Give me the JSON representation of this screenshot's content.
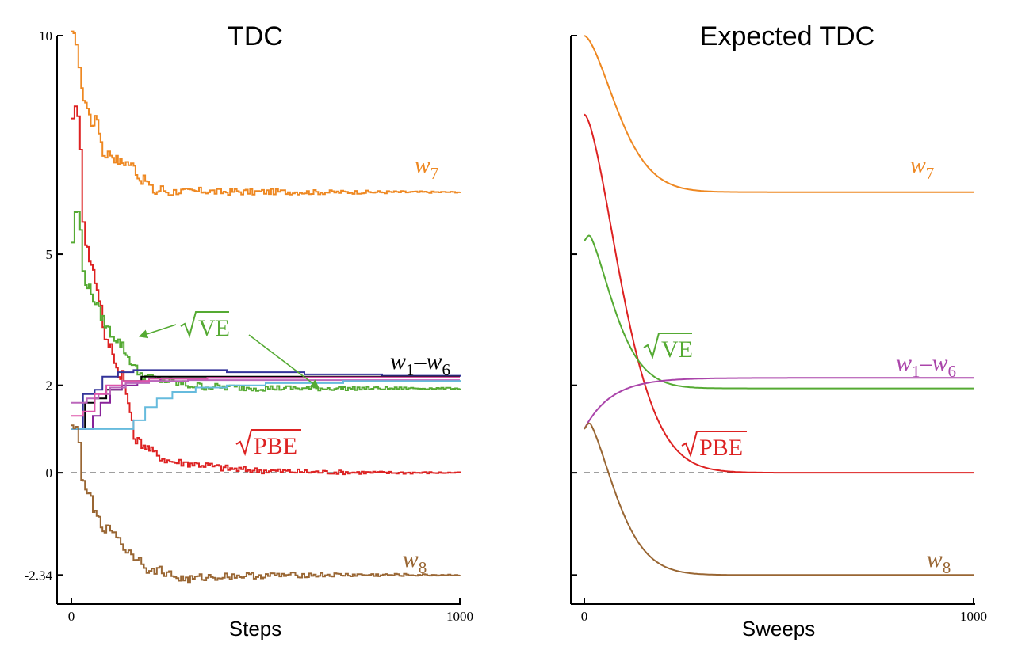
{
  "chart_data": [
    {
      "type": "line",
      "title": "TDC",
      "xlabel": "Steps",
      "ylabel": "",
      "xlim": [
        0,
        1000
      ],
      "ylim": [
        -2.95,
        10
      ],
      "xticks": [
        "0",
        "1000"
      ],
      "yticks": [
        "10",
        "5",
        "2",
        "0",
        "-2.34"
      ],
      "ytick_values": [
        10,
        5,
        2,
        0,
        -2.34
      ],
      "baseline": 0,
      "series": [
        {
          "name": "w7",
          "label_text": "w",
          "label_sub": "7",
          "color": "#ee8822",
          "points": [
            [
              0,
              10
            ],
            [
              10,
              9.9
            ],
            [
              18,
              9.3
            ],
            [
              25,
              8.7
            ],
            [
              35,
              8.5
            ],
            [
              50,
              8.0
            ],
            [
              65,
              8.1
            ],
            [
              80,
              7.3
            ],
            [
              100,
              7.3
            ],
            [
              110,
              7.2
            ],
            [
              125,
              7.1
            ],
            [
              140,
              7.1
            ],
            [
              160,
              7.0
            ],
            [
              175,
              6.7
            ],
            [
              190,
              6.7
            ],
            [
              205,
              6.5
            ],
            [
              215,
              6.4
            ],
            [
              230,
              6.5
            ],
            [
              250,
              6.4
            ],
            [
              270,
              6.45
            ],
            [
              300,
              6.42
            ],
            [
              340,
              6.45
            ],
            [
              380,
              6.42
            ],
            [
              420,
              6.44
            ],
            [
              460,
              6.42
            ],
            [
              520,
              6.43
            ],
            [
              600,
              6.42
            ],
            [
              700,
              6.42
            ],
            [
              800,
              6.42
            ],
            [
              1000,
              6.42
            ]
          ]
        },
        {
          "name": "√PBE",
          "label_text": "PBE",
          "color": "#dd2222",
          "points": [
            [
              0,
              8.2
            ],
            [
              8,
              8.3
            ],
            [
              15,
              8.1
            ],
            [
              22,
              7.5
            ],
            [
              28,
              5.8
            ],
            [
              35,
              5.3
            ],
            [
              45,
              4.9
            ],
            [
              55,
              4.6
            ],
            [
              65,
              4.2
            ],
            [
              75,
              3.8
            ],
            [
              85,
              3.0
            ],
            [
              100,
              2.9
            ],
            [
              110,
              2.6
            ],
            [
              120,
              2.2
            ],
            [
              130,
              2.3
            ],
            [
              140,
              1.8
            ],
            [
              150,
              1.4
            ],
            [
              160,
              0.8
            ],
            [
              175,
              0.7
            ],
            [
              190,
              0.6
            ],
            [
              205,
              0.5
            ],
            [
              220,
              0.4
            ],
            [
              240,
              0.3
            ],
            [
              260,
              0.25
            ],
            [
              300,
              0.22
            ],
            [
              340,
              0.18
            ],
            [
              380,
              0.12
            ],
            [
              420,
              0.08
            ],
            [
              460,
              0.06
            ],
            [
              520,
              0.04
            ],
            [
              600,
              0.02
            ],
            [
              700,
              0.01
            ],
            [
              800,
              0.0
            ],
            [
              1000,
              0.0
            ]
          ]
        },
        {
          "name": "√VE",
          "label_text": "VE",
          "color": "#55aa33",
          "points": [
            [
              0,
              5.3
            ],
            [
              8,
              5.9
            ],
            [
              15,
              6.0
            ],
            [
              22,
              5.5
            ],
            [
              28,
              4.6
            ],
            [
              35,
              4.4
            ],
            [
              45,
              4.2
            ],
            [
              55,
              4.0
            ],
            [
              65,
              3.8
            ],
            [
              75,
              3.6
            ],
            [
              85,
              3.4
            ],
            [
              100,
              3.2
            ],
            [
              110,
              3.1
            ],
            [
              120,
              3.0
            ],
            [
              130,
              2.9
            ],
            [
              140,
              2.7
            ],
            [
              155,
              2.5
            ],
            [
              170,
              2.3
            ],
            [
              190,
              2.2
            ],
            [
              210,
              2.15
            ],
            [
              240,
              2.1
            ],
            [
              270,
              2.05
            ],
            [
              300,
              2.0
            ],
            [
              330,
              1.98
            ],
            [
              370,
              1.96
            ],
            [
              420,
              1.95
            ],
            [
              500,
              1.94
            ],
            [
              600,
              1.93
            ],
            [
              700,
              1.93
            ],
            [
              1000,
              1.93
            ]
          ]
        },
        {
          "name": "w1–w6",
          "label_text": "w",
          "label_sub": "1",
          "label_sep": "–",
          "label_sub2": "6",
          "color": "#000000",
          "group": [
            {
              "color": "#333399",
              "points": [
                [
                  0,
                  1.0
                ],
                [
                  20,
                  1.0
                ],
                [
                  30,
                  1.8
                ],
                [
                  60,
                  1.9
                ],
                [
                  80,
                  2.2
                ],
                [
                  120,
                  2.3
                ],
                [
                  160,
                  2.35
                ],
                [
                  250,
                  2.35
                ],
                [
                  400,
                  2.3
                ],
                [
                  600,
                  2.25
                ],
                [
                  800,
                  2.22
                ],
                [
                  1000,
                  2.2
                ]
              ]
            },
            {
              "color": "#000000",
              "points": [
                [
                  0,
                  1.0
                ],
                [
                  25,
                  1.0
                ],
                [
                  35,
                  1.6
                ],
                [
                  60,
                  1.7
                ],
                [
                  90,
                  1.9
                ],
                [
                  130,
                  2.1
                ],
                [
                  180,
                  2.2
                ],
                [
                  260,
                  2.2
                ],
                [
                  400,
                  2.2
                ],
                [
                  600,
                  2.2
                ],
                [
                  1000,
                  2.2
                ]
              ]
            },
            {
              "color": "#882299",
              "points": [
                [
                  0,
                  1.0
                ],
                [
                  40,
                  1.0
                ],
                [
                  55,
                  1.3
                ],
                [
                  75,
                  1.6
                ],
                [
                  100,
                  1.9
                ],
                [
                  130,
                  2.0
                ],
                [
                  170,
                  2.1
                ],
                [
                  230,
                  2.15
                ],
                [
                  350,
                  2.17
                ],
                [
                  600,
                  2.18
                ],
                [
                  1000,
                  2.18
                ]
              ]
            },
            {
              "color": "#bb66bb",
              "points": [
                [
                  0,
                  1.6
                ],
                [
                  20,
                  1.6
                ],
                [
                  40,
                  1.7
                ],
                [
                  70,
                  1.8
                ],
                [
                  100,
                  1.95
                ],
                [
                  140,
                  2.05
                ],
                [
                  200,
                  2.1
                ],
                [
                  300,
                  2.12
                ],
                [
                  500,
                  2.12
                ],
                [
                  1000,
                  2.12
                ]
              ]
            },
            {
              "color": "#dd55aa",
              "points": [
                [
                  0,
                  1.3
                ],
                [
                  30,
                  1.4
                ],
                [
                  60,
                  1.8
                ],
                [
                  90,
                  2.0
                ],
                [
                  130,
                  2.1
                ],
                [
                  200,
                  2.15
                ],
                [
                  350,
                  2.17
                ],
                [
                  600,
                  2.18
                ],
                [
                  1000,
                  2.18
                ]
              ]
            },
            {
              "color": "#66bbdd",
              "points": [
                [
                  0,
                  1.0
                ],
                [
                  30,
                  1.0
                ],
                [
                  60,
                  1.0
                ],
                [
                  100,
                  1.0
                ],
                [
                  130,
                  1.0
                ],
                [
                  160,
                  1.2
                ],
                [
                  190,
                  1.5
                ],
                [
                  220,
                  1.7
                ],
                [
                  260,
                  1.85
                ],
                [
                  320,
                  1.95
                ],
                [
                  400,
                  2.0
                ],
                [
                  500,
                  2.05
                ],
                [
                  700,
                  2.1
                ],
                [
                  1000,
                  2.12
                ]
              ]
            }
          ]
        },
        {
          "name": "w8",
          "label_text": "w",
          "label_sub": "8",
          "color": "#996633",
          "points": [
            [
              0,
              1.0
            ],
            [
              10,
              1.0
            ],
            [
              18,
              0.8
            ],
            [
              25,
              -0.1
            ],
            [
              35,
              -0.5
            ],
            [
              45,
              -0.4
            ],
            [
              55,
              -0.9
            ],
            [
              65,
              -1.0
            ],
            [
              75,
              -1.2
            ],
            [
              90,
              -1.3
            ],
            [
              105,
              -1.3
            ],
            [
              120,
              -1.5
            ],
            [
              140,
              -1.8
            ],
            [
              160,
              -1.9
            ],
            [
              180,
              -2.0
            ],
            [
              200,
              -2.3
            ],
            [
              220,
              -2.2
            ],
            [
              245,
              -2.3
            ],
            [
              270,
              -2.4
            ],
            [
              300,
              -2.45
            ],
            [
              330,
              -2.4
            ],
            [
              370,
              -2.38
            ],
            [
              420,
              -2.36
            ],
            [
              500,
              -2.35
            ],
            [
              600,
              -2.34
            ],
            [
              700,
              -2.34
            ],
            [
              1000,
              -2.34
            ]
          ]
        }
      ],
      "annotations": [
        "√VE",
        "√PBE",
        "w1–w6",
        "w7",
        "w8"
      ]
    },
    {
      "type": "line",
      "title": "Expected TDC",
      "xlabel": "Sweeps",
      "ylabel": "",
      "xlim": [
        0,
        1000
      ],
      "ylim": [
        -2.95,
        10
      ],
      "xticks": [
        "0",
        "1000"
      ],
      "ytick_values": [
        10,
        5,
        2,
        0,
        -2.34
      ],
      "baseline": 0,
      "series": [
        {
          "name": "w7",
          "label_text": "w",
          "label_sub": "7",
          "color": "#ee8822",
          "start": 10,
          "end": 6.42,
          "tau": 80,
          "shape": "sigmoid"
        },
        {
          "name": "√PBE",
          "label_text": "PBE",
          "color": "#dd2222",
          "start": 8.2,
          "end": 0,
          "tau": 90,
          "shape": "sigmoid"
        },
        {
          "name": "√VE",
          "label_text": "VE",
          "color": "#55aa33",
          "start": 5.3,
          "peak": 5.5,
          "end": 1.93,
          "tau": 70,
          "shape": "bump"
        },
        {
          "name": "w1–w6",
          "label_text": "w",
          "label_sub": "1",
          "label_sep": "–",
          "label_sub2": "6",
          "color": "#aa44aa",
          "start": 1.0,
          "end": 2.17,
          "tau": 70,
          "shape": "rise"
        },
        {
          "name": "w8",
          "label_text": "w",
          "label_sub": "8",
          "color": "#996633",
          "start": 1.0,
          "peak": 1.2,
          "end": -2.34,
          "tau": 75,
          "shape": "bump"
        }
      ]
    }
  ]
}
